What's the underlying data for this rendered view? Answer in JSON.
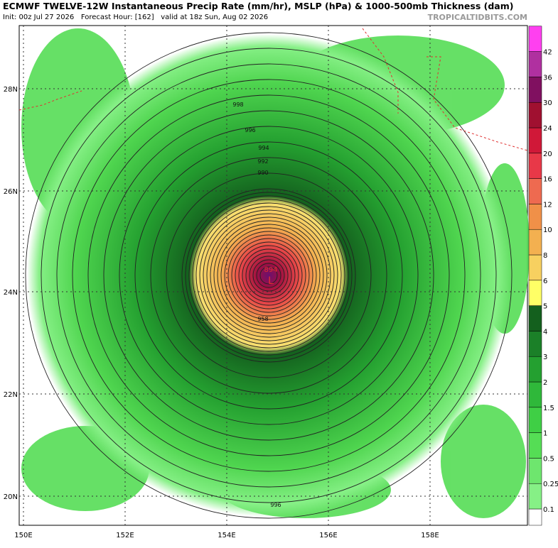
{
  "header": {
    "title": "ECMWF TWELVE-12W Instantaneous Precip Rate (mm/hr), MSLP (hPa) & 1000-500mb Thickness (dam)",
    "subtitle": "Init: 00z Jul 27 2026   Forecast Hour: [162]   valid at 18z Sun, Aug 02 2026",
    "site": "TROPICALTIDBITS.COM"
  },
  "map": {
    "lat_labels": [
      "28N",
      "26N",
      "24N",
      "22N",
      "20N"
    ],
    "lon_labels": [
      "150E",
      "152E",
      "154E",
      "156E",
      "158E"
    ],
    "contour_labels": [
      "998",
      "996",
      "994",
      "992",
      "990",
      "894",
      "L",
      "958",
      "996"
    ]
  },
  "colorbar": {
    "labels": [
      "0.1",
      "0.25",
      "0.5",
      "1",
      "1.5",
      "2",
      "3",
      "4",
      "5",
      "6",
      "8",
      "10",
      "12",
      "16",
      "20",
      "24",
      "30",
      "36",
      "42"
    ],
    "colors": [
      "#ffffff",
      "#86f086",
      "#6ee66e",
      "#55dd55",
      "#3fcf45",
      "#2fb83a",
      "#24a030",
      "#1b8028",
      "#14601e",
      "#ffff66",
      "#f7d060",
      "#f3b050",
      "#f09048",
      "#ee6a50",
      "#e83848",
      "#d01838",
      "#a01030",
      "#801060",
      "#b030a0",
      "#ff40f0"
    ]
  }
}
